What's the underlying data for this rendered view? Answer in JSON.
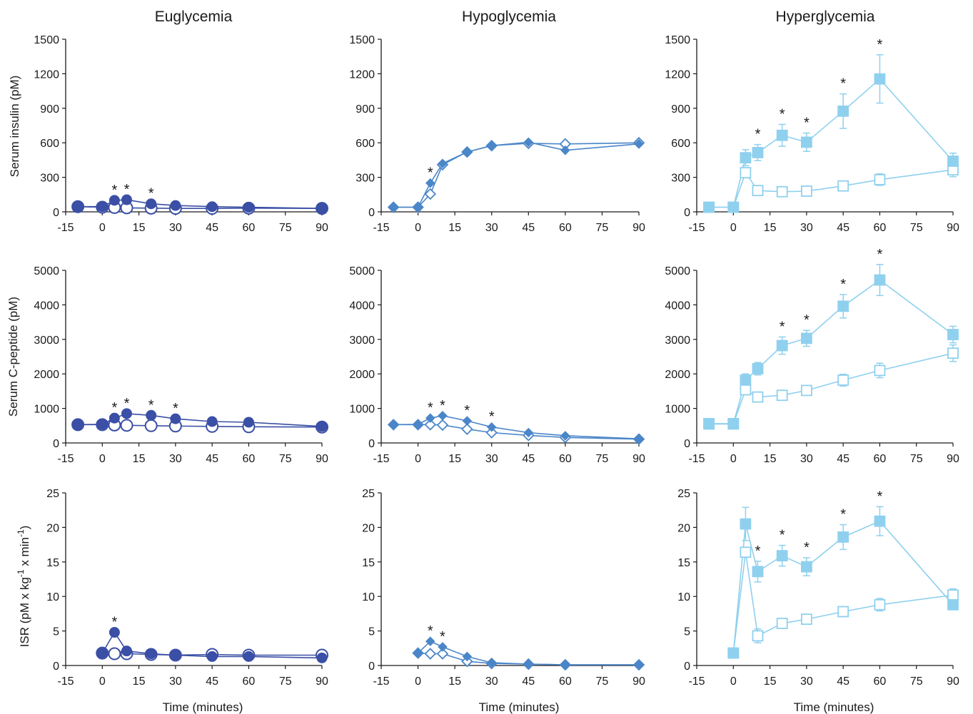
{
  "figure": {
    "columns": [
      "Euglycemia",
      "Hypoglycemia",
      "Hyperglycemia"
    ],
    "row_labels": [
      "Serum insulin (pM)",
      "Serum C-peptide (pM)",
      "ISR (pM x kg",
      "-1",
      " x min",
      "-1",
      ")"
    ],
    "x_label": "Time (minutes)"
  },
  "colors": {
    "eu": "#3a4fa5",
    "hypo": "#4a86c8",
    "hyper": "#8fd0ee",
    "text": "#1a1a1a"
  },
  "chart_data": [
    {
      "type": "line",
      "title": "Euglycemia",
      "ylabel": "Serum insulin (pM)",
      "xlabel": "",
      "xlim": [
        -15,
        90
      ],
      "ylim": [
        0,
        1500
      ],
      "xticks": [
        "-15",
        "0",
        "15",
        "30",
        "45",
        "60",
        "75",
        "90"
      ],
      "yticks": [
        "0",
        "300",
        "600",
        "900",
        "1200",
        "1500"
      ],
      "marker": "circle",
      "series": [
        {
          "fill": "filled",
          "points": [
            [
              -10,
              45
            ],
            [
              0,
              45
            ],
            [
              5,
              100
            ],
            [
              10,
              105
            ],
            [
              20,
              70
            ],
            [
              30,
              55
            ],
            [
              45,
              45
            ],
            [
              60,
              40
            ],
            [
              90,
              30
            ]
          ]
        },
        {
          "fill": "open",
          "points": [
            [
              -10,
              45
            ],
            [
              0,
              40
            ],
            [
              5,
              38
            ],
            [
              10,
              35
            ],
            [
              20,
              32
            ],
            [
              30,
              30
            ],
            [
              45,
              30
            ],
            [
              60,
              32
            ],
            [
              90,
              30
            ]
          ]
        }
      ],
      "significant": [
        {
          "x": 5,
          "y": 100
        },
        {
          "x": 10,
          "y": 105
        },
        {
          "x": 20,
          "y": 70
        }
      ]
    },
    {
      "type": "line",
      "title": "Hypoglycemia",
      "ylabel": "",
      "xlabel": "",
      "xlim": [
        -15,
        90
      ],
      "ylim": [
        0,
        1500
      ],
      "xticks": [
        "-15",
        "0",
        "15",
        "30",
        "45",
        "60",
        "75",
        "90"
      ],
      "yticks": [
        "0",
        "300",
        "600",
        "900",
        "1200",
        "1500"
      ],
      "marker": "diamond",
      "series": [
        {
          "fill": "filled",
          "points": [
            [
              -10,
              40
            ],
            [
              0,
              40
            ],
            [
              5,
              250
            ],
            [
              10,
              420
            ],
            [
              20,
              520
            ],
            [
              30,
              575
            ],
            [
              45,
              605
            ],
            [
              60,
              535
            ],
            [
              90,
              590
            ]
          ]
        },
        {
          "fill": "open",
          "points": [
            [
              -10,
              40
            ],
            [
              0,
              40
            ],
            [
              5,
              155
            ],
            [
              10,
              410
            ],
            [
              20,
              520
            ],
            [
              30,
              575
            ],
            [
              45,
              595
            ],
            [
              60,
              590
            ],
            [
              90,
              600
            ]
          ]
        }
      ],
      "significant": [
        {
          "x": 5,
          "y": 250
        }
      ]
    },
    {
      "type": "line",
      "title": "Hyperglycemia",
      "ylabel": "",
      "xlabel": "",
      "xlim": [
        -15,
        90
      ],
      "ylim": [
        0,
        1500
      ],
      "xticks": [
        "-15",
        "0",
        "15",
        "30",
        "45",
        "60",
        "75",
        "90"
      ],
      "yticks": [
        "0",
        "300",
        "600",
        "900",
        "1200",
        "1500"
      ],
      "marker": "square",
      "series": [
        {
          "fill": "filled",
          "points": [
            [
              -10,
              40
            ],
            [
              0,
              40
            ],
            [
              5,
              470
            ],
            [
              10,
              515
            ],
            [
              20,
              665
            ],
            [
              30,
              605
            ],
            [
              45,
              875
            ],
            [
              60,
              1155
            ],
            [
              90,
              440
            ]
          ],
          "errors": [
            0,
            0,
            70,
            70,
            95,
            80,
            150,
            210,
            70
          ]
        },
        {
          "fill": "open",
          "points": [
            [
              -10,
              40
            ],
            [
              0,
              40
            ],
            [
              5,
              340
            ],
            [
              10,
              185
            ],
            [
              20,
              175
            ],
            [
              30,
              180
            ],
            [
              45,
              225
            ],
            [
              60,
              280
            ],
            [
              90,
              365
            ]
          ],
          "errors": [
            0,
            0,
            0,
            0,
            0,
            0,
            30,
            50,
            60
          ]
        }
      ],
      "significant": [
        {
          "x": 10,
          "y": 515
        },
        {
          "x": 20,
          "y": 665
        },
        {
          "x": 30,
          "y": 605
        },
        {
          "x": 45,
          "y": 875
        },
        {
          "x": 60,
          "y": 1155
        }
      ]
    },
    {
      "type": "line",
      "title": "",
      "ylabel": "Serum C-peptide (pM)",
      "xlabel": "",
      "xlim": [
        -15,
        90
      ],
      "ylim": [
        0,
        5000
      ],
      "xticks": [
        "-15",
        "0",
        "15",
        "30",
        "45",
        "60",
        "75",
        "90"
      ],
      "yticks": [
        "0",
        "1000",
        "2000",
        "3000",
        "4000",
        "5000"
      ],
      "marker": "circle",
      "series": [
        {
          "fill": "filled",
          "points": [
            [
              -10,
              530
            ],
            [
              0,
              540
            ],
            [
              5,
              720
            ],
            [
              10,
              850
            ],
            [
              20,
              800
            ],
            [
              30,
              700
            ],
            [
              45,
              620
            ],
            [
              60,
              600
            ],
            [
              90,
              480
            ]
          ]
        },
        {
          "fill": "open",
          "points": [
            [
              -10,
              530
            ],
            [
              0,
              530
            ],
            [
              5,
              520
            ],
            [
              10,
              510
            ],
            [
              20,
              500
            ],
            [
              30,
              490
            ],
            [
              45,
              480
            ],
            [
              60,
              470
            ],
            [
              90,
              460
            ]
          ]
        }
      ],
      "significant": [
        {
          "x": 5,
          "y": 720
        },
        {
          "x": 10,
          "y": 850
        },
        {
          "x": 20,
          "y": 800
        },
        {
          "x": 30,
          "y": 700
        }
      ]
    },
    {
      "type": "line",
      "title": "",
      "ylabel": "",
      "xlabel": "",
      "xlim": [
        -15,
        90
      ],
      "ylim": [
        0,
        5000
      ],
      "xticks": [
        "-15",
        "0",
        "15",
        "30",
        "45",
        "60",
        "75",
        "90"
      ],
      "yticks": [
        "0",
        "1000",
        "2000",
        "3000",
        "4000",
        "5000"
      ],
      "marker": "diamond",
      "series": [
        {
          "fill": "filled",
          "points": [
            [
              -10,
              530
            ],
            [
              0,
              540
            ],
            [
              5,
              720
            ],
            [
              10,
              790
            ],
            [
              20,
              640
            ],
            [
              30,
              460
            ],
            [
              45,
              300
            ],
            [
              60,
              210
            ],
            [
              90,
              120
            ]
          ]
        },
        {
          "fill": "open",
          "points": [
            [
              -10,
              530
            ],
            [
              0,
              530
            ],
            [
              5,
              530
            ],
            [
              10,
              520
            ],
            [
              20,
              400
            ],
            [
              30,
              300
            ],
            [
              45,
              220
            ],
            [
              60,
              160
            ],
            [
              90,
              110
            ]
          ]
        }
      ],
      "significant": [
        {
          "x": 5,
          "y": 720
        },
        {
          "x": 10,
          "y": 790
        },
        {
          "x": 20,
          "y": 640
        },
        {
          "x": 30,
          "y": 460
        }
      ]
    },
    {
      "type": "line",
      "title": "",
      "ylabel": "",
      "xlabel": "",
      "xlim": [
        -15,
        90
      ],
      "ylim": [
        0,
        5000
      ],
      "xticks": [
        "-15",
        "0",
        "15",
        "30",
        "45",
        "60",
        "75",
        "90"
      ],
      "yticks": [
        "0",
        "1000",
        "2000",
        "3000",
        "4000",
        "5000"
      ],
      "marker": "square",
      "series": [
        {
          "fill": "filled",
          "points": [
            [
              -10,
              560
            ],
            [
              0,
              560
            ],
            [
              5,
              1820
            ],
            [
              10,
              2150
            ],
            [
              20,
              2820
            ],
            [
              30,
              3030
            ],
            [
              45,
              3960
            ],
            [
              60,
              4720
            ],
            [
              90,
              3140
            ]
          ],
          "errors": [
            80,
            80,
            180,
            180,
            250,
            230,
            340,
            450,
            240
          ]
        },
        {
          "fill": "open",
          "points": [
            [
              -10,
              550
            ],
            [
              0,
              550
            ],
            [
              5,
              1540
            ],
            [
              10,
              1330
            ],
            [
              20,
              1380
            ],
            [
              30,
              1520
            ],
            [
              45,
              1820
            ],
            [
              60,
              2100
            ],
            [
              90,
              2600
            ]
          ],
          "errors": [
            0,
            0,
            0,
            0,
            0,
            0,
            170,
            210,
            240
          ]
        }
      ],
      "significant": [
        {
          "x": 20,
          "y": 2820
        },
        {
          "x": 30,
          "y": 3030
        },
        {
          "x": 45,
          "y": 3960
        },
        {
          "x": 60,
          "y": 4720
        }
      ]
    },
    {
      "type": "line",
      "title": "",
      "ylabel": "",
      "xlabel": "Time (minutes)",
      "xlim": [
        -15,
        90
      ],
      "ylim": [
        0,
        25
      ],
      "xticks": [
        "-15",
        "0",
        "15",
        "30",
        "45",
        "60",
        "75",
        "90"
      ],
      "yticks": [
        "0",
        "5",
        "10",
        "15",
        "20",
        "25"
      ],
      "marker": "circle",
      "series": [
        {
          "fill": "filled",
          "points": [
            [
              0,
              1.8
            ],
            [
              5,
              4.8
            ],
            [
              10,
              2.1
            ],
            [
              20,
              1.7
            ],
            [
              30,
              1.5
            ],
            [
              45,
              1.3
            ],
            [
              60,
              1.3
            ],
            [
              90,
              1.1
            ]
          ]
        },
        {
          "fill": "open",
          "points": [
            [
              0,
              1.8
            ],
            [
              5,
              1.7
            ],
            [
              10,
              1.7
            ],
            [
              20,
              1.6
            ],
            [
              30,
              1.5
            ],
            [
              45,
              1.6
            ],
            [
              60,
              1.5
            ],
            [
              90,
              1.5
            ]
          ]
        }
      ],
      "significant": [
        {
          "x": 5,
          "y": 4.8
        }
      ]
    },
    {
      "type": "line",
      "title": "",
      "ylabel": "",
      "xlabel": "Time (minutes)",
      "xlim": [
        -15,
        90
      ],
      "ylim": [
        0,
        25
      ],
      "xticks": [
        "-15",
        "0",
        "15",
        "30",
        "45",
        "60",
        "75",
        "90"
      ],
      "yticks": [
        "0",
        "5",
        "10",
        "15",
        "20",
        "25"
      ],
      "marker": "diamond",
      "series": [
        {
          "fill": "filled",
          "points": [
            [
              0,
              1.8
            ],
            [
              5,
              3.5
            ],
            [
              10,
              2.7
            ],
            [
              20,
              1.3
            ],
            [
              30,
              0.4
            ],
            [
              45,
              0.2
            ],
            [
              60,
              0.1
            ],
            [
              90,
              0.1
            ]
          ]
        },
        {
          "fill": "open",
          "points": [
            [
              0,
              1.8
            ],
            [
              5,
              1.7
            ],
            [
              10,
              1.7
            ],
            [
              20,
              0.6
            ],
            [
              30,
              0.3
            ],
            [
              45,
              0.2
            ],
            [
              60,
              0.1
            ],
            [
              90,
              0.1
            ]
          ]
        }
      ],
      "significant": [
        {
          "x": 5,
          "y": 3.5
        },
        {
          "x": 10,
          "y": 2.7
        }
      ]
    },
    {
      "type": "line",
      "title": "",
      "ylabel": "",
      "xlabel": "Time (minutes)",
      "xlim": [
        -15,
        90
      ],
      "ylim": [
        0,
        25
      ],
      "xticks": [
        "-15",
        "0",
        "15",
        "30",
        "45",
        "60",
        "75",
        "90"
      ],
      "yticks": [
        "0",
        "5",
        "10",
        "15",
        "20",
        "25"
      ],
      "marker": "square",
      "series": [
        {
          "fill": "filled",
          "points": [
            [
              0,
              1.8
            ],
            [
              5,
              20.5
            ],
            [
              10,
              13.6
            ],
            [
              20,
              15.9
            ],
            [
              30,
              14.3
            ],
            [
              45,
              18.6
            ],
            [
              60,
              20.9
            ],
            [
              90,
              8.8
            ]
          ],
          "errors": [
            0,
            2.4,
            1.5,
            1.5,
            1.3,
            1.8,
            2.1,
            0
          ]
        },
        {
          "fill": "open",
          "points": [
            [
              0,
              1.8
            ],
            [
              5,
              16.4
            ],
            [
              10,
              4.3
            ],
            [
              20,
              6.1
            ],
            [
              30,
              6.7
            ],
            [
              45,
              7.8
            ],
            [
              60,
              8.8
            ],
            [
              90,
              10.2
            ]
          ],
          "errors": [
            0,
            0,
            1.0,
            0,
            0,
            0.7,
            0.9,
            0.9
          ]
        }
      ],
      "significant": [
        {
          "x": 10,
          "y": 13.6
        },
        {
          "x": 20,
          "y": 15.9
        },
        {
          "x": 30,
          "y": 14.3
        },
        {
          "x": 45,
          "y": 18.6
        },
        {
          "x": 60,
          "y": 20.9
        }
      ]
    }
  ]
}
